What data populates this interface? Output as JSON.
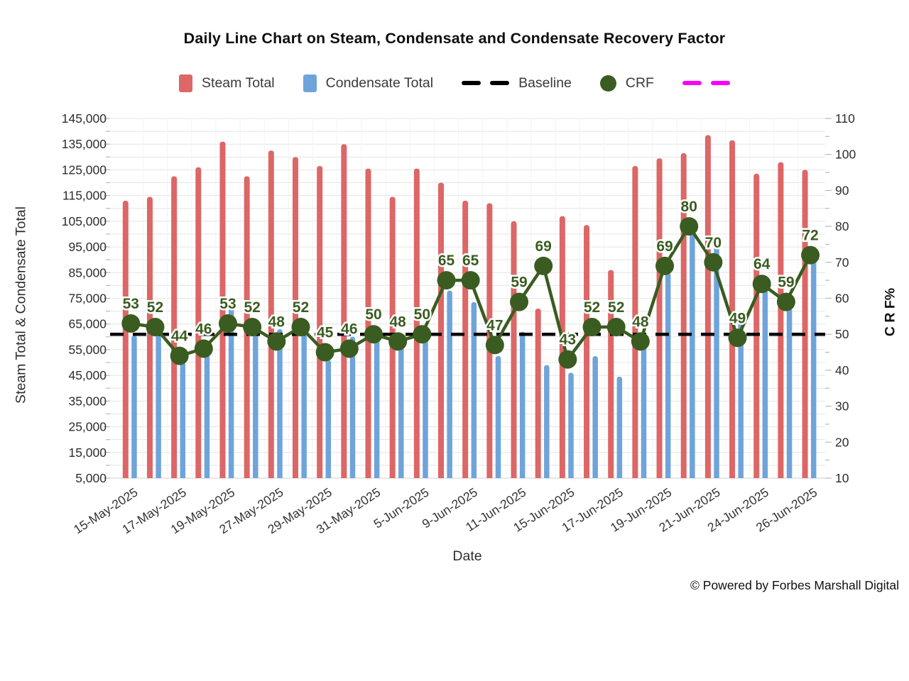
{
  "title": "Daily Line Chart on Steam, Condensate and Condensate Recovery Factor",
  "legend": {
    "steam": "Steam Total",
    "condensate": "Condensate Total",
    "baseline": "Baseline",
    "crf": "CRF",
    "magenta_item": ""
  },
  "footer": "© Powered by Forbes Marshall Digital",
  "colors": {
    "steam_bar": "#dd6666",
    "condensate_bar": "#6fa4da",
    "baseline_line": "#000000",
    "crf_line": "#3a5c20",
    "magenta_dash": "#fb00fb",
    "gridline": "#e4e4e4",
    "tick": "#b9b9b9",
    "axis_text": "#2d2d2d"
  },
  "chart_data": {
    "type": "combo-bar-line",
    "num_categories": 29,
    "x_axis": {
      "title": "Date",
      "tick_labels": [
        "15-May-2025",
        "17-May-2025",
        "19-May-2025",
        "27-May-2025",
        "29-May-2025",
        "31-May-2025",
        "5-Jun-2025",
        "9-Jun-2025",
        "11-Jun-2025",
        "15-Jun-2025",
        "17-Jun-2025",
        "19-Jun-2025",
        "21-Jun-2025",
        "24-Jun-2025",
        "26-Jun-2025"
      ],
      "labeled_category_indices": [
        0,
        2,
        4,
        6,
        8,
        10,
        12,
        14,
        16,
        18,
        20,
        22,
        24,
        26,
        28
      ]
    },
    "left_axis": {
      "title": "Steam Total & Condensate Total",
      "min": 5000,
      "max": 145000,
      "tick_step": 10000,
      "minor_step": 5000
    },
    "right_axis": {
      "title": "C R F%",
      "min": 10,
      "max": 110,
      "tick_step": 10,
      "minor_step": 5
    },
    "grid": "horizontal",
    "legend_position": "top",
    "series": [
      {
        "name": "Steam Total",
        "type": "bar",
        "axis": "left",
        "values": [
          113000,
          114500,
          122500,
          126000,
          136000,
          122500,
          132500,
          130000,
          126500,
          135000,
          125500,
          114500,
          125500,
          120000,
          113000,
          112000,
          105000,
          71000,
          107000,
          103500,
          86000,
          126500,
          129500,
          131500,
          138500,
          136500,
          123500,
          128000,
          125000
        ]
      },
      {
        "name": "Condensate Total",
        "type": "bar",
        "axis": "left",
        "values": [
          60500,
          61000,
          51000,
          53000,
          71500,
          61000,
          63000,
          64000,
          51000,
          60000,
          59500,
          56500,
          61000,
          78000,
          73500,
          52500,
          62000,
          49000,
          46000,
          52500,
          44500,
          57500,
          85000,
          100000,
          96500,
          67500,
          78500,
          71500,
          90000
        ]
      },
      {
        "name": "Baseline",
        "type": "dashed-line",
        "axis": "right",
        "value": 50
      },
      {
        "name": "CRF",
        "type": "line-with-points",
        "axis": "right",
        "point_labels": true,
        "values": [
          53,
          52,
          44,
          46,
          53,
          52,
          48,
          52,
          45,
          46,
          50,
          48,
          50,
          65,
          65,
          47,
          59,
          69,
          43,
          52,
          52,
          48,
          69,
          80,
          70,
          49,
          64,
          59,
          72
        ]
      },
      {
        "name": "",
        "type": "dashed-line-legend-only",
        "note_color": "magenta"
      }
    ]
  }
}
